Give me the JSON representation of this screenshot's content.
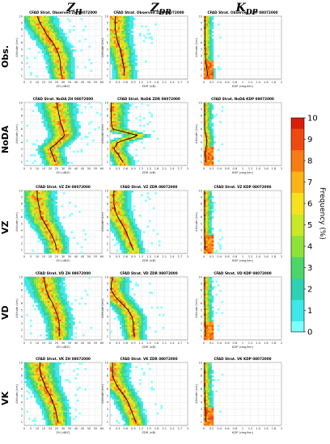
{
  "column_titles": [
    {
      "base": "Z",
      "sub": "H"
    },
    {
      "base": "Z",
      "sub": "DR"
    },
    {
      "base": "K",
      "sub": "DP"
    }
  ],
  "row_labels": [
    "Obs.",
    "NoDA",
    "VZ",
    "VD",
    "VK"
  ],
  "panel_titles": [
    [
      "CFAD Strat. Observed ZH 08072000",
      "CFAD Strat. Observed ZDR 08072000",
      "CFAD Strat. Observed KDP 08072000"
    ],
    [
      "CFAD Strat. NoDA ZH 08072000",
      "CFAD Strat. NoDA ZDR 08072000",
      "CFAD Strat. NoDA KDP 08072000"
    ],
    [
      "CFAD Strat. VZ ZH 08072000",
      "CFAD Strat. VZ ZDR 08072000",
      "CFAD Strat. VZ KDP 08072000"
    ],
    [
      "CFAD Strat. VD ZH 08072000",
      "CFAD Strat. VD ZDR 08072000",
      "CFAD Strat. VD KDP 08072000"
    ],
    [
      "CFAD Strat. VK ZH 08072000",
      "CFAD Strat. VK ZDR 08072000",
      "CFAD Strat. VK KDP 08072000"
    ]
  ],
  "axes": {
    "ylabel": "Altitude (km)",
    "xlabels": [
      "ZH (dBZ)",
      "ZDR (dB)",
      "KDP (deg/km)"
    ],
    "yticks": [
      "1",
      "2",
      "3",
      "4",
      "5",
      "6",
      "7",
      "8",
      "9",
      "10"
    ],
    "xticks": [
      [
        "0",
        "5",
        "10",
        "15",
        "20",
        "25",
        "30",
        "35",
        "40",
        "45",
        "50",
        "55",
        "60"
      ],
      [
        "0",
        "0.3",
        "0.6",
        "0.9",
        "1.2",
        "1.5",
        "1.8",
        "2.1",
        "2.4",
        "2.7",
        "3"
      ],
      [
        "0",
        "0.2",
        "0.4",
        "0.6",
        "0.8",
        "1",
        "1.2",
        "1.4",
        "1.6",
        "1.8",
        "2"
      ]
    ]
  },
  "colorbar": {
    "label": "Frequency (%)",
    "ticks": [
      "0",
      "1",
      "2",
      "3",
      "4",
      "5",
      "6",
      "7",
      "8",
      "9",
      "10"
    ],
    "range": [
      0,
      10
    ]
  },
  "colors": {
    "cmap": [
      "#80ffff",
      "#3ee8e8",
      "#2ed2b0",
      "#4cd66a",
      "#8ee23a",
      "#c8e828",
      "#f6e21c",
      "#fcb418",
      "#f87c14",
      "#ee4a10",
      "#d81e08"
    ],
    "mean_line": "#000000"
  },
  "chart_data": {
    "type": "heatmap",
    "description_units": {
      "y": "km",
      "x_zh": "dBZ",
      "x_zdr": "dB",
      "x_kdp": "deg/km"
    },
    "ylim": [
      0.5,
      10
    ],
    "xlims": [
      [
        0,
        60
      ],
      [
        0,
        3
      ],
      [
        0,
        2
      ]
    ],
    "mean_profiles": {
      "heights_km": [
        1,
        2,
        3,
        4,
        5,
        6,
        7,
        8,
        9,
        10
      ],
      "Obs": {
        "ZH": [
          29,
          28,
          28,
          27,
          25,
          22,
          18,
          15,
          12,
          10
        ],
        "ZDR": [
          0.55,
          0.55,
          0.5,
          0.45,
          0.4,
          0.3,
          0.25,
          0.2,
          0.2,
          0.2
        ],
        "KDP": [
          0.1,
          0.08,
          0.05,
          0.04,
          0.04,
          0.03,
          0.03,
          0.03,
          0.03,
          0.03
        ]
      },
      "NoDA": {
        "ZH": [
          24,
          22,
          20,
          26,
          31,
          30,
          28,
          27,
          26,
          25
        ],
        "ZDR": [
          0.5,
          0.35,
          0.15,
          0.3,
          1.1,
          0.1,
          0.05,
          0.05,
          0.05,
          0.05
        ],
        "KDP": [
          0.05,
          0.04,
          0.05,
          0.08,
          0.06,
          0.02,
          0.02,
          0.02,
          0.02,
          0.02
        ]
      },
      "VZ": {
        "ZH": [
          25,
          24,
          22,
          19,
          16,
          13,
          12,
          11,
          10,
          10
        ],
        "ZDR": [
          0.9,
          0.8,
          0.7,
          0.6,
          0.45,
          0.3,
          0.2,
          0.15,
          0.15,
          0.15
        ],
        "KDP": [
          0.03,
          0.03,
          0.02,
          0.02,
          0.02,
          0.02,
          0.02,
          0.02,
          0.02,
          0.02
        ]
      },
      "VD": {
        "ZH": [
          27,
          27,
          27,
          26,
          24,
          22,
          19,
          17,
          16,
          15
        ],
        "ZDR": [
          0.95,
          0.9,
          0.9,
          0.85,
          0.7,
          0.45,
          0.2,
          0.05,
          0.05,
          0.1
        ],
        "KDP": [
          0.04,
          0.04,
          0.03,
          0.03,
          0.03,
          0.02,
          0.02,
          0.02,
          0.02,
          0.02
        ]
      },
      "VK": {
        "ZH": [
          26,
          25,
          24,
          22,
          20,
          17,
          15,
          13,
          12,
          12
        ],
        "ZDR": [
          1.0,
          0.9,
          0.8,
          0.7,
          0.55,
          0.35,
          0.2,
          0.1,
          0.1,
          0.1
        ],
        "KDP": [
          0.06,
          0.05,
          0.04,
          0.03,
          0.03,
          0.02,
          0.02,
          0.02,
          0.02,
          0.02
        ]
      }
    }
  }
}
